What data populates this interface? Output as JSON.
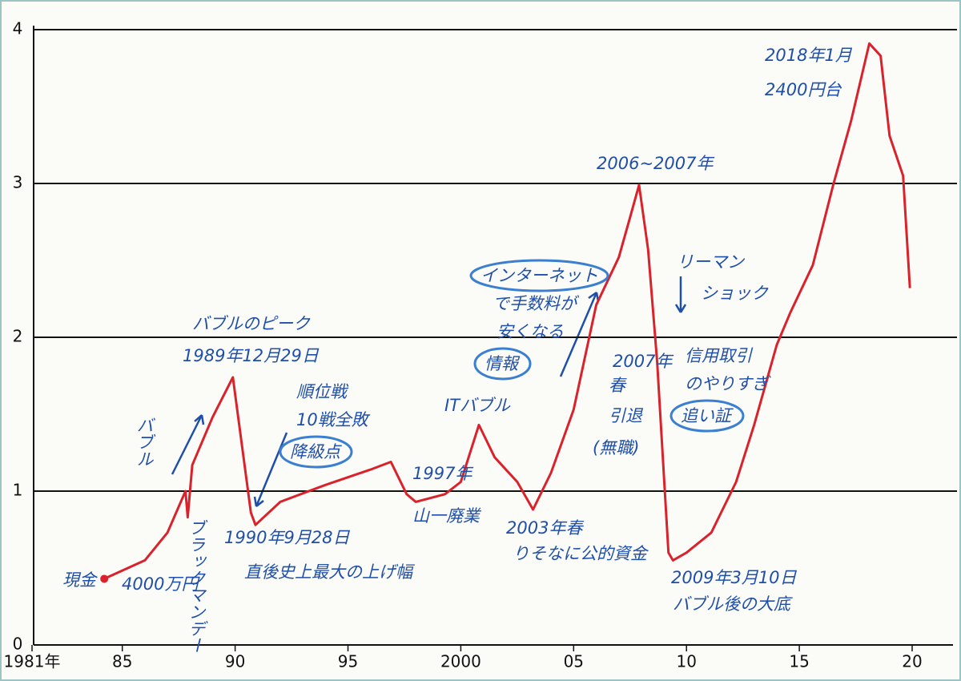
{
  "chart_data": {
    "type": "line",
    "color": "#d9222b",
    "x": [
      1984.2,
      1986.0,
      1987.0,
      1987.8,
      1987.9,
      1988.1,
      1989.0,
      1989.9,
      1990.7,
      1990.9,
      1992.0,
      1994.0,
      1996.0,
      1996.9,
      1997.6,
      1998.0,
      1999.3,
      2000.0,
      2000.8,
      2001.5,
      2002.5,
      2003.2,
      2004.0,
      2005.0,
      2006.0,
      2007.0,
      2007.5,
      2007.9,
      2008.3,
      2008.7,
      2009.2,
      2009.4,
      2010.0,
      2011.1,
      2012.2,
      2013.0,
      2014.0,
      2014.6,
      2015.6,
      2016.5,
      2017.3,
      2018.1,
      2018.6,
      2019.0,
      2019.6,
      2019.9
    ],
    "values": [
      0.43,
      0.55,
      0.73,
      1.0,
      0.83,
      1.17,
      1.48,
      1.74,
      0.86,
      0.78,
      0.93,
      1.04,
      1.14,
      1.19,
      0.98,
      0.93,
      0.98,
      1.06,
      1.43,
      1.22,
      1.06,
      0.88,
      1.12,
      1.53,
      2.21,
      2.52,
      2.78,
      2.99,
      2.57,
      1.84,
      0.6,
      0.55,
      0.6,
      0.73,
      1.06,
      1.43,
      1.95,
      2.16,
      2.47,
      2.99,
      3.41,
      3.91,
      3.83,
      3.31,
      3.05,
      2.32
    ],
    "xlim": [
      1981,
      2021.1
    ],
    "ylim": [
      0,
      4
    ],
    "xticks": [
      {
        "value": 1981,
        "label": "1981年"
      },
      {
        "value": 1985,
        "label": "85"
      },
      {
        "value": 1990,
        "label": "90"
      },
      {
        "value": 1995,
        "label": "95"
      },
      2000,
      {
        "value": 2005,
        "label": "05"
      },
      {
        "value": 2010,
        "label": "10"
      },
      {
        "value": 2015,
        "label": "15"
      },
      {
        "value": 2020,
        "label": "20"
      }
    ],
    "yticks": [
      0,
      1,
      2,
      3,
      4
    ],
    "grid": true,
    "annotations": [
      "現金",
      "4000万円",
      "ブラックマンデー",
      "バブル",
      "バブルのピーク",
      "1989年12月29日",
      "順位戦",
      "10戦全敗",
      "降級点",
      "1990年9月28日",
      "直後史上最大の上げ幅",
      "1997年",
      "山一廃業",
      "ITバブル",
      "インターネット",
      "で手数料が",
      "安くなる",
      "情報",
      "2003年春",
      "りそなに公的資金",
      "2006~2007年",
      "2007年",
      "春",
      "引退",
      "(無職)",
      "リーマン",
      "ショック",
      "信用取引",
      "のやりすぎ",
      "追い証",
      "2009年3月10日",
      "バブル後の大底",
      "2018年1月",
      "2400円台"
    ]
  }
}
